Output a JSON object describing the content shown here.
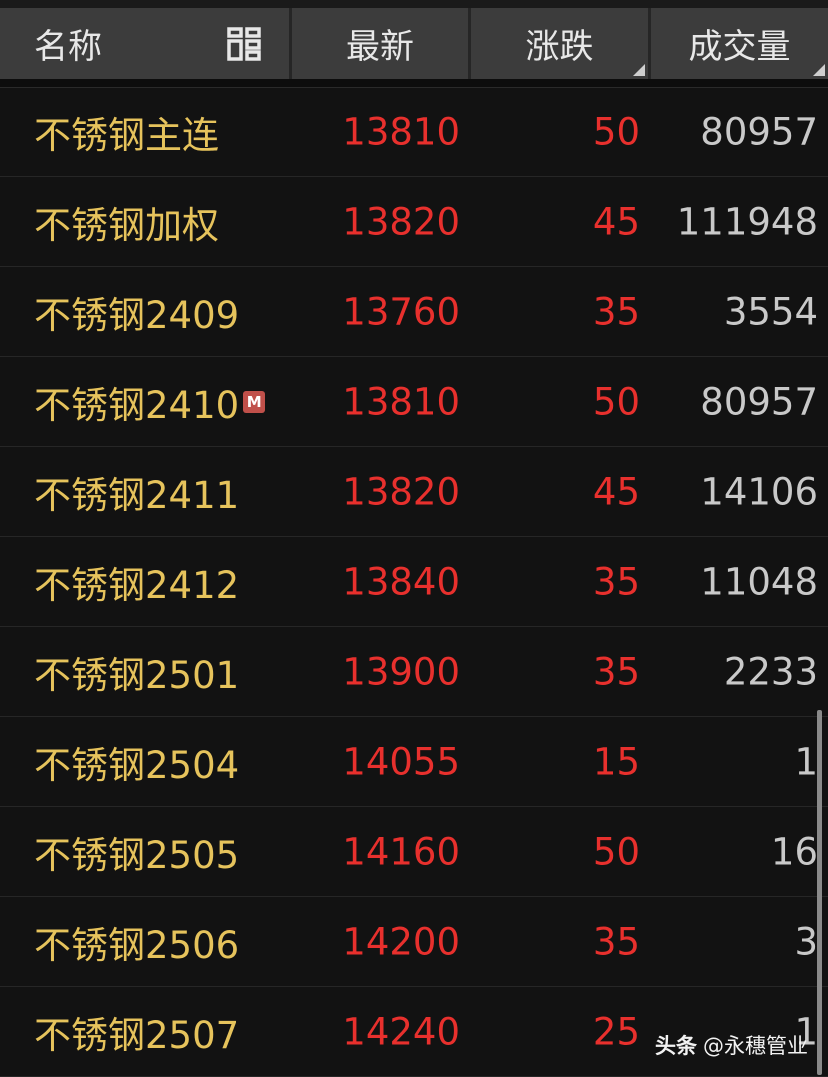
{
  "header": {
    "name": "名称",
    "last": "最新",
    "change": "涨跌",
    "volume": "成交量",
    "layout_icon": "grid-layout-icon"
  },
  "colors": {
    "name": "#e6c35c",
    "up": "#e8302d",
    "volume": "#c9c9c9",
    "header_bg": "#3c3c3c",
    "bg": "#121212"
  },
  "rows": [
    {
      "name": "不锈钢主连",
      "last": "13810",
      "change": "50",
      "volume": "80957"
    },
    {
      "name": "不锈钢加权",
      "last": "13820",
      "change": "45",
      "volume": "111948"
    },
    {
      "name": "不锈钢2409",
      "last": "13760",
      "change": "35",
      "volume": "3554"
    },
    {
      "name": "不锈钢2410",
      "badge": "M",
      "last": "13810",
      "change": "50",
      "volume": "80957"
    },
    {
      "name": "不锈钢2411",
      "last": "13820",
      "change": "45",
      "volume": "14106"
    },
    {
      "name": "不锈钢2412",
      "last": "13840",
      "change": "35",
      "volume": "11048"
    },
    {
      "name": "不锈钢2501",
      "last": "13900",
      "change": "35",
      "volume": "2233"
    },
    {
      "name": "不锈钢2504",
      "last": "14055",
      "change": "15",
      "volume": "1"
    },
    {
      "name": "不锈钢2505",
      "last": "14160",
      "change": "50",
      "volume": "16"
    },
    {
      "name": "不锈钢2506",
      "last": "14200",
      "change": "35",
      "volume": "3"
    },
    {
      "name": "不锈钢2507",
      "last": "14240",
      "change": "25",
      "volume": "1"
    }
  ],
  "watermark": {
    "source": "头条",
    "author": "@永穗管业"
  }
}
